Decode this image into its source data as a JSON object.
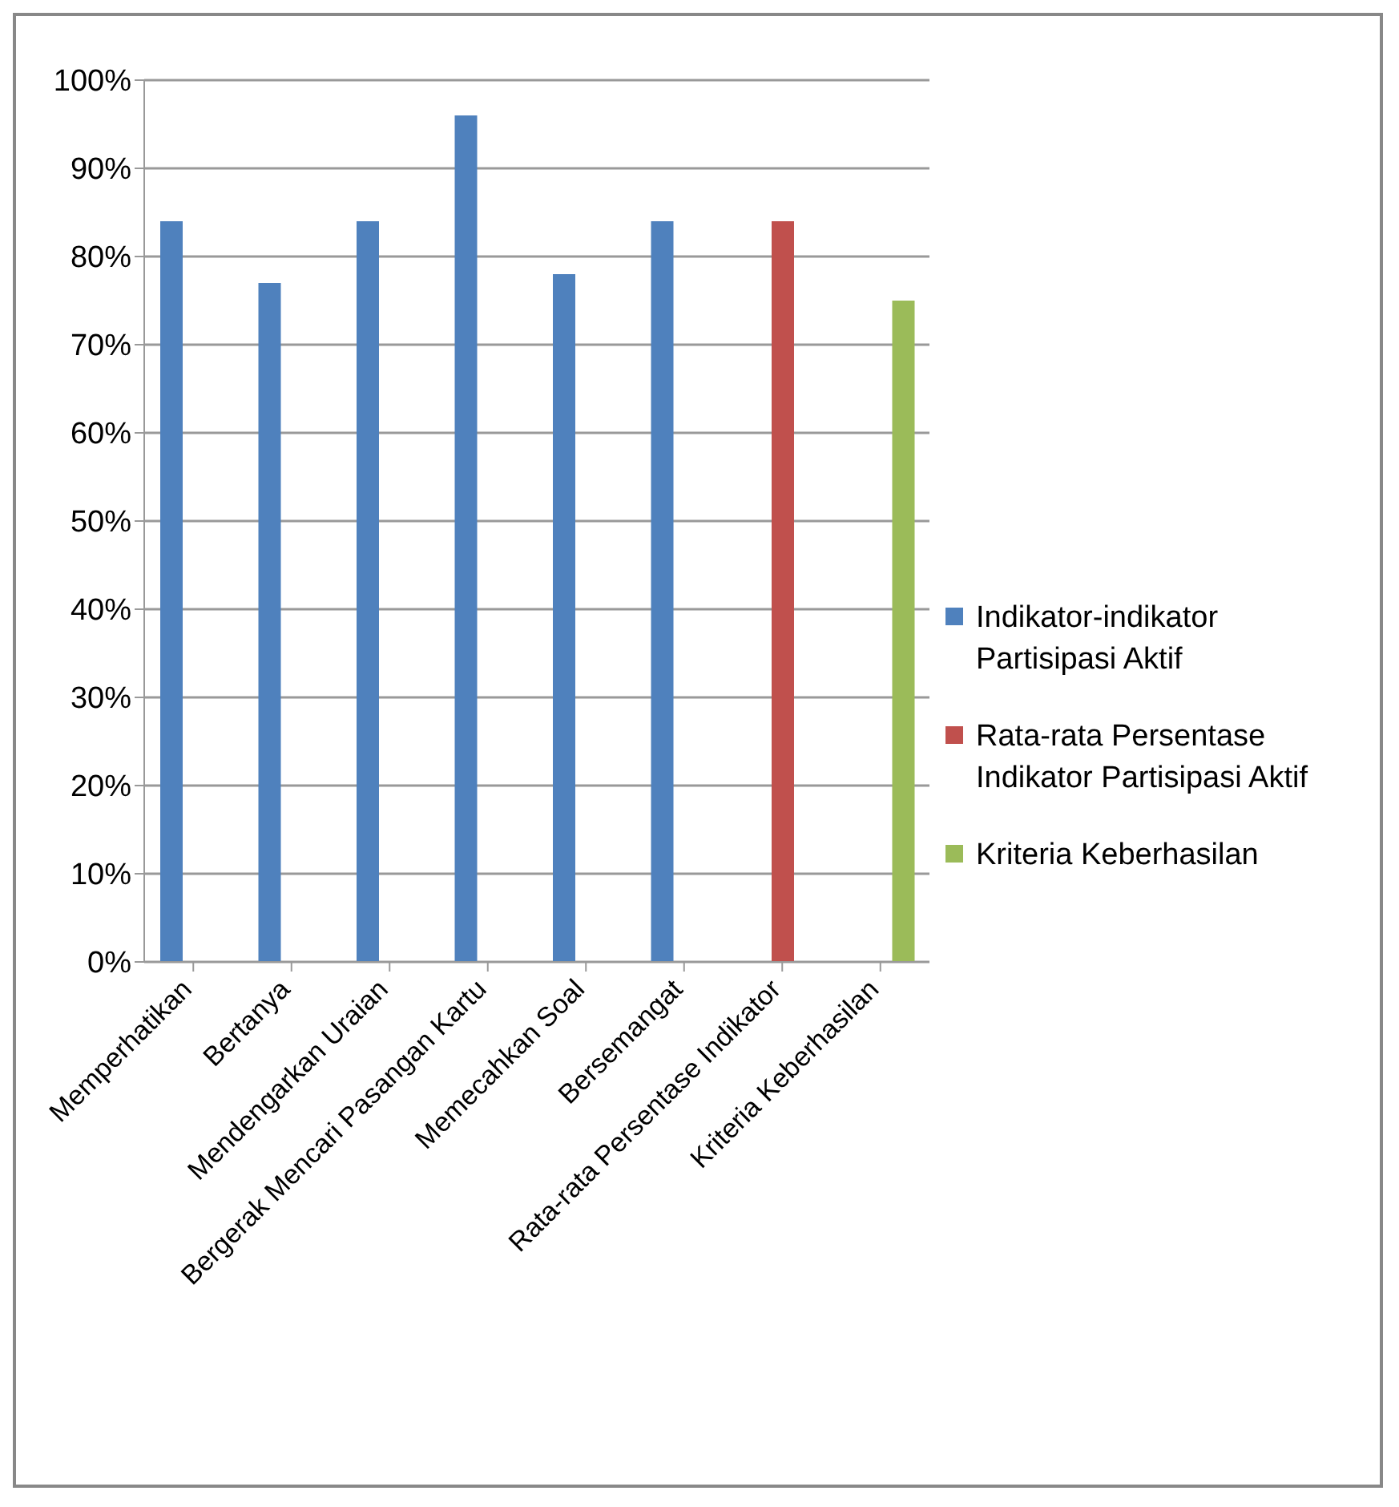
{
  "chart_data": {
    "type": "bar",
    "categories": [
      "Memperhatikan",
      "Bertanya",
      "Mendengarkan Uraian",
      "Bergerak Mencari Pasangan Kartu",
      "Memecahkan Soal",
      "Bersemangat",
      "Rata-rata Persentase Indikator",
      "Kriteria Keberhasilan"
    ],
    "series": [
      {
        "name": "Indikator-indikator Partisipasi Aktif",
        "color": "#4f81bd",
        "values": [
          84,
          77,
          84,
          96,
          78,
          84,
          null,
          0
        ]
      },
      {
        "name": "Rata-rata Persentase Indikator Partisipasi Aktif",
        "color": "#c0504d",
        "values": [
          null,
          null,
          null,
          null,
          null,
          null,
          84,
          null
        ]
      },
      {
        "name": "Kriteria Keberhasilan",
        "color": "#9bbb59",
        "values": [
          null,
          null,
          null,
          null,
          null,
          null,
          null,
          75
        ]
      }
    ],
    "ylim": [
      0,
      100
    ],
    "yticks": [
      {
        "value": 0,
        "label": "0%"
      },
      {
        "value": 10,
        "label": "10%"
      },
      {
        "value": 20,
        "label": "20%"
      },
      {
        "value": 30,
        "label": "30%"
      },
      {
        "value": 40,
        "label": "40%"
      },
      {
        "value": 50,
        "label": "50%"
      },
      {
        "value": 60,
        "label": "60%"
      },
      {
        "value": 70,
        "label": "70%"
      },
      {
        "value": 80,
        "label": "80%"
      },
      {
        "value": 90,
        "label": "90%"
      },
      {
        "value": 100,
        "label": "100%"
      }
    ],
    "grid": "y",
    "legend": "right"
  }
}
